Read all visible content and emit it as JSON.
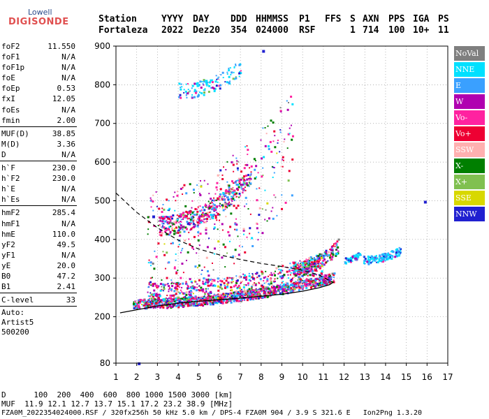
{
  "logo": {
    "top": "Lowell",
    "main": "DIGISONDE"
  },
  "header": {
    "labels": [
      "Station",
      "YYYY",
      "DAY",
      "DDD",
      "HHMMSS",
      "P1",
      "FFS",
      "S",
      "AXN",
      "PPS",
      "IGA",
      "PS"
    ],
    "values": [
      "Fortaleza",
      "2022",
      "Dez20",
      "354",
      "024000",
      "RSF",
      "1",
      "714",
      "100",
      "10+",
      "11"
    ]
  },
  "params": {
    "group1": [
      {
        "label": "foF2",
        "value": "11.550"
      },
      {
        "label": "foF1",
        "value": "N/A"
      },
      {
        "label": "foF1p",
        "value": "N/A"
      },
      {
        "label": "foE",
        "value": "N/A"
      },
      {
        "label": "foEp",
        "value": "0.53"
      },
      {
        "label": "fxI",
        "value": "12.05"
      },
      {
        "label": "foEs",
        "value": "N/A"
      },
      {
        "label": "fmin",
        "value": "2.00"
      }
    ],
    "group2": [
      {
        "label": "MUF(D)",
        "value": "38.85"
      },
      {
        "label": "M(D)",
        "value": "3.36"
      },
      {
        "label": "D",
        "value": "N/A"
      }
    ],
    "group3": [
      {
        "label": "h`F",
        "value": "230.0"
      },
      {
        "label": "h`F2",
        "value": "230.0"
      },
      {
        "label": "h`E",
        "value": "N/A"
      },
      {
        "label": "h`Es",
        "value": "N/A"
      }
    ],
    "group4": [
      {
        "label": "hmF2",
        "value": "285.4"
      },
      {
        "label": "hmF1",
        "value": "N/A"
      },
      {
        "label": "hmE",
        "value": "110.0"
      },
      {
        "label": "yF2",
        "value": "49.5"
      },
      {
        "label": "yF1",
        "value": "N/A"
      },
      {
        "label": "yE",
        "value": "20.0"
      },
      {
        "label": "B0",
        "value": "47.2"
      },
      {
        "label": "B1",
        "value": "2.41"
      }
    ],
    "group5": [
      {
        "label": "C-level",
        "value": "33"
      }
    ],
    "scaler": [
      "Auto:",
      "Artist5",
      "500200"
    ]
  },
  "legend": [
    {
      "label": "NoVal",
      "color": "#7f7f7f"
    },
    {
      "label": "NNE",
      "color": "#00e0ff"
    },
    {
      "label": "E",
      "color": "#3aa0ff"
    },
    {
      "label": "W",
      "color": "#b000b0"
    },
    {
      "label": "Vo-",
      "color": "#ff22a0"
    },
    {
      "label": "Vo+",
      "color": "#ee0033"
    },
    {
      "label": "SSW",
      "color": "#ffb0b0"
    },
    {
      "label": "X-",
      "color": "#007f00"
    },
    {
      "label": "X+",
      "color": "#80c050"
    },
    {
      "label": "SSE",
      "color": "#d8d800"
    },
    {
      "label": "NNW",
      "color": "#2020d0"
    }
  ],
  "footer": {
    "d_line": "D      100  200  400  600  800 1000 1500 3000 [km]",
    "muf_line": "MUF  11.9 12.1 12.7 13.7 15.1 17.2 23.2 38.9 [MHz]",
    "file_line": "FZA0M_2022354024000.RSF / 320fx256h 50 kHz 5.0 km / DPS-4 FZA0M 904 / 3.9 S 321.6 E   Ion2Png 1.3.20"
  },
  "chart_data": {
    "type": "scatter",
    "title": "",
    "xlabel": "",
    "ylabel": "",
    "xlim": [
      1,
      17
    ],
    "ylim": [
      80,
      900
    ],
    "x_ticks": [
      1,
      2,
      3,
      4,
      5,
      6,
      7,
      8,
      9,
      10,
      11,
      12,
      13,
      14,
      15,
      16,
      17
    ],
    "y_ticks": [
      80,
      200,
      300,
      400,
      500,
      600,
      700,
      800,
      900
    ],
    "grid": true,
    "clusters": [
      {
        "name": "F-trace",
        "x_range": [
          1.8,
          11.5
        ],
        "y_base": [
          232,
          300
        ],
        "spread": 25,
        "count": 1100
      },
      {
        "name": "F-trace-upper",
        "x_range": [
          2.5,
          11.0
        ],
        "y_base": [
          250,
          330
        ],
        "spread": 60,
        "count": 600
      },
      {
        "name": "multi-hop",
        "x_range": [
          3.0,
          7.5
        ],
        "y_base": [
          430,
          560
        ],
        "spread": 50,
        "count": 420
      },
      {
        "name": "high-spread",
        "x_range": [
          4.0,
          7.0
        ],
        "y_base": [
          780,
          840
        ],
        "spread": 40,
        "count": 120
      },
      {
        "name": "plumes",
        "x_range": [
          2.5,
          9.5
        ],
        "y_base": [
          340,
          620
        ],
        "spread": 120,
        "count": 380
      },
      {
        "name": "right-spread",
        "x_range": [
          9.5,
          11.7
        ],
        "y_base": [
          320,
          380
        ],
        "spread": 35,
        "count": 260
      },
      {
        "name": "blob-12",
        "x_range": [
          12.0,
          12.8
        ],
        "y_base": [
          345,
          365
        ],
        "spread": 15,
        "count": 60
      },
      {
        "name": "blob-13-14",
        "x_range": [
          12.9,
          14.7
        ],
        "y_base": [
          345,
          370
        ],
        "spread": 20,
        "count": 150
      }
    ],
    "isolated": [
      {
        "x": 2.05,
        "y": 82
      },
      {
        "x": 2.75,
        "y": 462
      },
      {
        "x": 8.05,
        "y": 890
      },
      {
        "x": 15.85,
        "y": 500
      }
    ],
    "model_curve_solid": [
      [
        1.2,
        210
      ],
      [
        2,
        218
      ],
      [
        3,
        228
      ],
      [
        4,
        235
      ],
      [
        5,
        240
      ],
      [
        6,
        244
      ],
      [
        7,
        248
      ],
      [
        8,
        253
      ],
      [
        9,
        258
      ],
      [
        10,
        266
      ],
      [
        10.8,
        275
      ],
      [
        11.3,
        283
      ],
      [
        11.5,
        290
      ]
    ],
    "model_curve_dashed": [
      [
        1.0,
        520
      ],
      [
        2,
        470
      ],
      [
        3,
        430
      ],
      [
        4,
        398
      ],
      [
        5,
        375
      ],
      [
        6,
        360
      ],
      [
        7,
        348
      ],
      [
        8,
        338
      ],
      [
        9,
        330
      ],
      [
        10,
        320
      ],
      [
        10.8,
        308
      ],
      [
        11.2,
        296
      ],
      [
        11.4,
        290
      ]
    ]
  }
}
